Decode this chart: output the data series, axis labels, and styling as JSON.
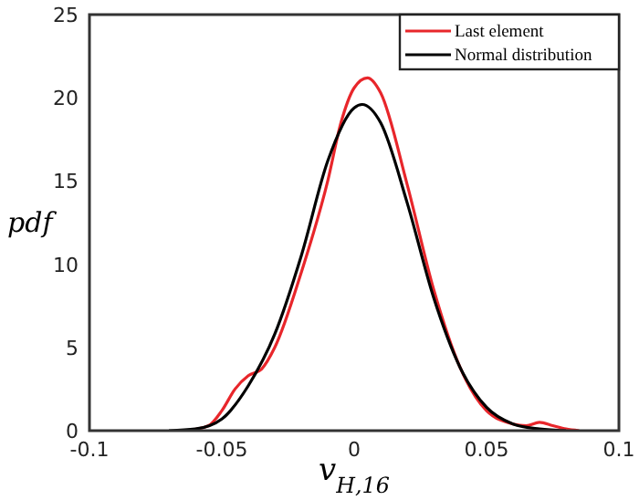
{
  "chart_data": {
    "type": "line",
    "xlabel": "v$_{H,16}$",
    "ylabel": "pdf",
    "xlim": [
      -0.1,
      0.1
    ],
    "xticks": [
      -0.1,
      -0.05,
      0,
      0.05,
      0.1
    ],
    "ylim": [
      0,
      25
    ],
    "yticks": [
      0,
      5,
      10,
      15,
      20,
      25
    ],
    "legend": "top right",
    "grid": false,
    "series": [
      {
        "name": "Last element",
        "color": "#e8262b",
        "x": [
          -0.063,
          -0.055,
          -0.05,
          -0.045,
          -0.04,
          -0.035,
          -0.03,
          -0.02,
          -0.01,
          -0.005,
          0,
          0.005,
          0.01,
          0.02,
          0.03,
          0.04,
          0.05,
          0.06,
          0.065,
          0.07,
          0.075,
          0.08,
          0.085
        ],
        "values": [
          0,
          0.3,
          1.2,
          2.5,
          3.3,
          3.7,
          5.0,
          9.5,
          15.0,
          18.5,
          20.6,
          21.2,
          20.3,
          14.8,
          8.5,
          3.8,
          1.2,
          0.4,
          0.3,
          0.5,
          0.3,
          0.1,
          0
        ]
      },
      {
        "name": "Normal distribution",
        "color": "#000000",
        "x": [
          -0.07,
          -0.06,
          -0.05,
          -0.04,
          -0.03,
          -0.02,
          -0.01,
          0,
          0.003,
          0.01,
          0.02,
          0.03,
          0.04,
          0.05,
          0.06,
          0.07,
          0.08
        ],
        "values": [
          0,
          0.1,
          0.7,
          2.7,
          5.8,
          10.5,
          16.2,
          19.4,
          19.6,
          18.5,
          13.7,
          8.0,
          3.8,
          1.4,
          0.4,
          0.1,
          0
        ]
      }
    ]
  }
}
